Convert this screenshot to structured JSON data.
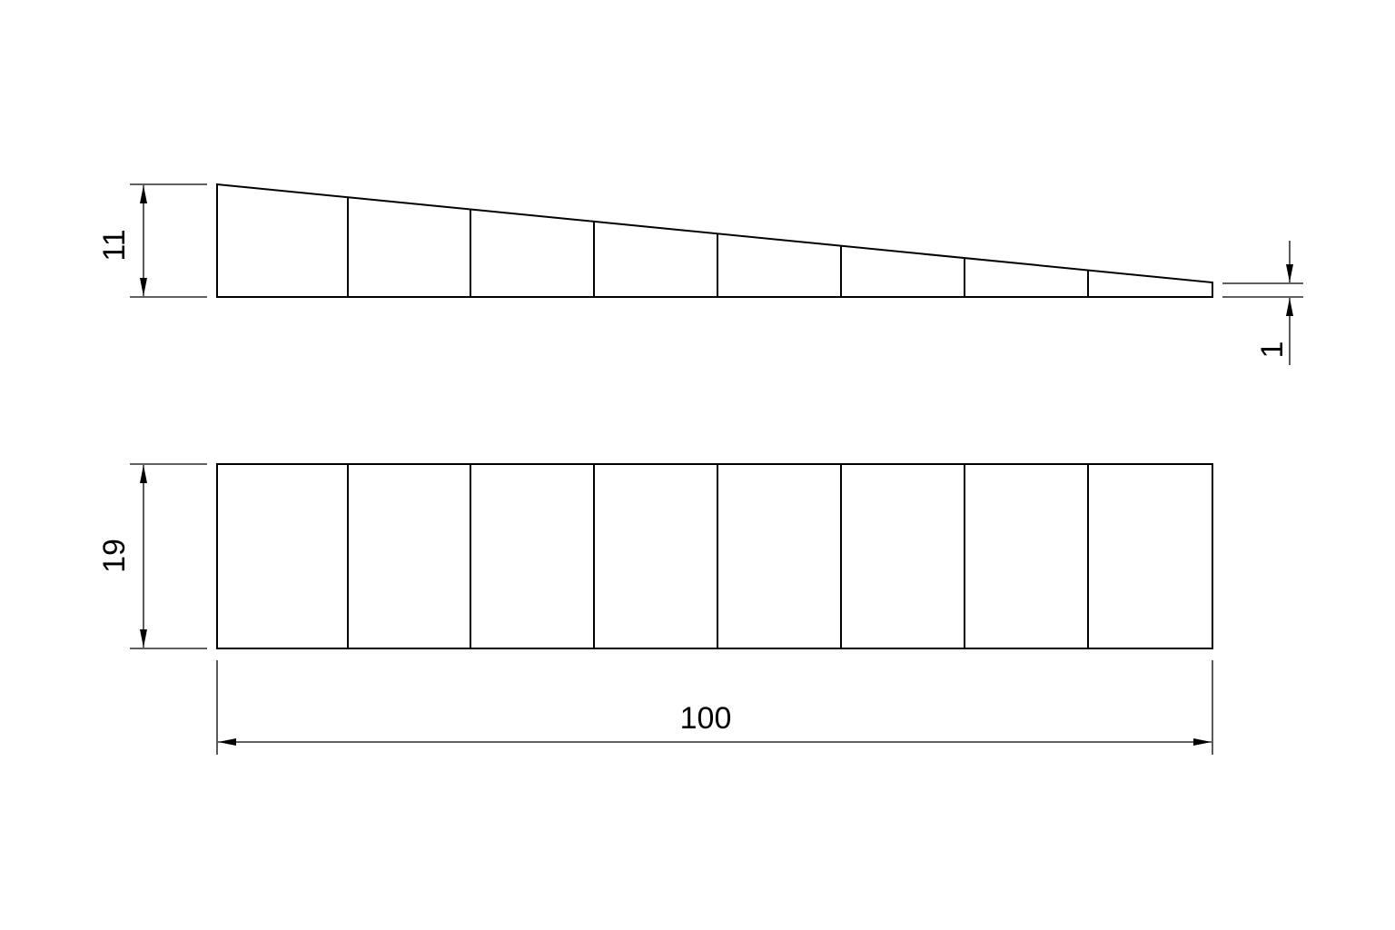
{
  "drawing": {
    "side_view": {
      "dimension_height_left": "11",
      "dimension_height_right": "1"
    },
    "top_view": {
      "dimension_width": "19",
      "dimension_length": "100"
    },
    "segments": 8,
    "line_color": "#000000",
    "background": "#ffffff"
  }
}
